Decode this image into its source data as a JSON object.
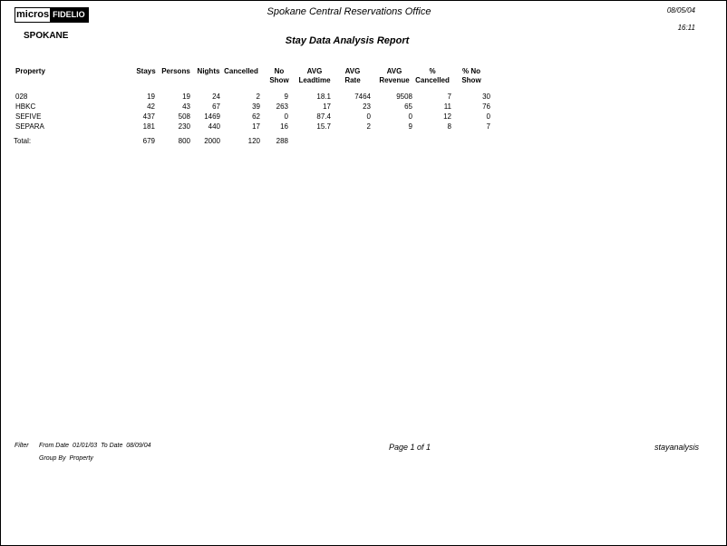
{
  "header": {
    "logo_left": "micros",
    "logo_right": "FIDELIO",
    "office": "Spokane Central Reservations Office",
    "date": "08/05/04",
    "time": "16:11",
    "property": "SPOKANE",
    "title": "Stay Data Analysis Report"
  },
  "table": {
    "columns": [
      [
        "Property"
      ],
      [
        "Stays"
      ],
      [
        "Persons"
      ],
      [
        "Nights"
      ],
      [
        "Cancelled"
      ],
      [
        "No",
        "Show"
      ],
      [
        "AVG",
        "Leadtime"
      ],
      [
        "AVG",
        "Rate"
      ],
      [
        "AVG",
        "Revenue"
      ],
      [
        "%",
        "Cancelled"
      ],
      [
        "% No",
        "Show"
      ]
    ],
    "rows": [
      [
        "028",
        "19",
        "19",
        "24",
        "2",
        "9",
        "18.1",
        "7464",
        "9508",
        "7",
        "30"
      ],
      [
        "HBKC",
        "42",
        "43",
        "67",
        "39",
        "263",
        "17",
        "23",
        "65",
        "11",
        "76"
      ],
      [
        "SEFIVE",
        "437",
        "508",
        "1469",
        "62",
        "0",
        "87.4",
        "0",
        "0",
        "12",
        "0"
      ],
      [
        "SEPARA",
        "181",
        "230",
        "440",
        "17",
        "16",
        "15.7",
        "2",
        "9",
        "8",
        "7"
      ]
    ],
    "total": [
      "Total:",
      "679",
      "800",
      "2000",
      "120",
      "288"
    ]
  },
  "footer": {
    "filter_label": "Filter",
    "from_label": "From Date",
    "from_value": "01/01/03",
    "to_label": "To Date",
    "to_value": "08/09/04",
    "group_label": "Group By",
    "group_value": "Property",
    "page": "Page 1 of 1",
    "report_name": "stayanalysis"
  }
}
